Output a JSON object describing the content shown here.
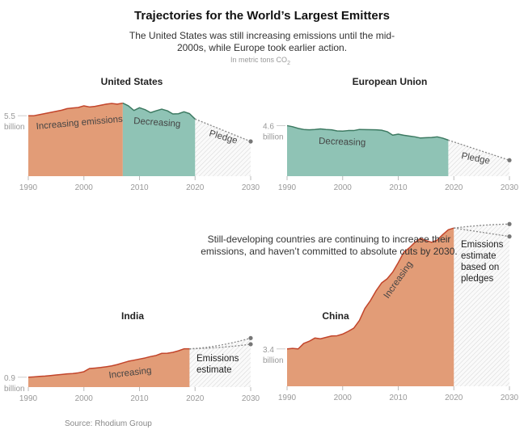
{
  "title": "Trajectories for the World’s Largest Emitters",
  "subtitle_line1": "The United States was still increasing emissions until the mid-",
  "subtitle_line2": "2000s, while Europe took earlier action.",
  "units_note": "In metric tons CO",
  "units_sub": "2",
  "middle_text_line1": "Still-developing countries are continuing to increase their",
  "middle_text_line2": "emissions, and haven’t committed to absolute cuts by 2030.",
  "source": "Source: Rhodium Group",
  "colors": {
    "increase_fill": "#e29c77",
    "increase_line": "#c2452b",
    "decrease_fill": "#8fc3b5",
    "decrease_line": "#3d7a62",
    "projection": "#888888"
  },
  "chart_data": [
    {
      "type": "area",
      "title": "United States",
      "start_year": 1990,
      "values": [
        5.5,
        5.5,
        5.6,
        5.7,
        5.8,
        5.9,
        6.0,
        6.15,
        6.2,
        6.25,
        6.4,
        6.3,
        6.35,
        6.45,
        6.55,
        6.62,
        6.55,
        6.65,
        6.4,
        5.98,
        6.23,
        6.05,
        5.78,
        5.95,
        6.1,
        5.95,
        5.66,
        5.68,
        5.86,
        5.69,
        5.2
      ],
      "peak_year": 2007,
      "projections": [
        {
          "name": "Pledge",
          "points": [
            [
              2020,
              5.2
            ],
            [
              2030,
              3.16
            ]
          ]
        }
      ],
      "y_tick": "5.5",
      "y_tick_value": 5.5,
      "y_unit": "billion",
      "x_ticks": [
        "1990",
        "2000",
        "2010",
        "2020",
        "2030"
      ],
      "labels": {
        "increasing": "Increasing emissions",
        "decreasing": "Decreasing",
        "projection": "Pledge"
      }
    },
    {
      "type": "area",
      "title": "European Union",
      "start_year": 1990,
      "values": [
        4.6,
        4.5,
        4.35,
        4.25,
        4.22,
        4.25,
        4.3,
        4.25,
        4.22,
        4.12,
        4.1,
        4.15,
        4.15,
        4.25,
        4.24,
        4.23,
        4.22,
        4.18,
        4.05,
        3.73,
        3.82,
        3.72,
        3.65,
        3.58,
        3.47,
        3.5,
        3.52,
        3.58,
        3.46,
        3.28
      ],
      "projections": [
        {
          "name": "Pledge",
          "points": [
            [
              2019,
              3.28
            ],
            [
              2030,
              1.45
            ]
          ]
        }
      ],
      "y_tick": "4.6",
      "y_tick_value": 4.6,
      "y_unit": "billion",
      "x_ticks": [
        "1990",
        "2000",
        "2010",
        "2020",
        "2030"
      ],
      "labels": {
        "decreasing": "Decreasing",
        "projection": "Pledge"
      }
    },
    {
      "type": "area",
      "title": "India",
      "start_year": 1990,
      "values": [
        0.9,
        0.93,
        0.97,
        1.0,
        1.05,
        1.1,
        1.15,
        1.2,
        1.23,
        1.3,
        1.4,
        1.69,
        1.73,
        1.78,
        1.85,
        1.93,
        2.05,
        2.2,
        2.35,
        2.45,
        2.55,
        2.65,
        2.78,
        2.88,
        3.07,
        3.08,
        3.16,
        3.3,
        3.48,
        3.48
      ],
      "projections": [
        {
          "name": "high",
          "points": [
            [
              2019,
              3.48
            ],
            [
              2024,
              3.6
            ],
            [
              2030,
              4.46
            ]
          ]
        },
        {
          "name": "low",
          "points": [
            [
              2019,
              3.48
            ],
            [
              2025,
              3.56
            ],
            [
              2030,
              3.9
            ]
          ]
        }
      ],
      "y_tick": "0.9",
      "y_tick_value": 0.9,
      "y_unit": "billion",
      "x_ticks": [
        "1990",
        "2000",
        "2010",
        "2020",
        "2030"
      ],
      "labels": {
        "increasing": "Increasing",
        "projection_line1": "Emissions",
        "projection_line2": "estimate"
      }
    },
    {
      "type": "area",
      "title": "China",
      "start_year": 1990,
      "values": [
        3.4,
        3.45,
        3.4,
        3.9,
        4.1,
        4.39,
        4.32,
        4.45,
        4.58,
        4.6,
        4.75,
        5.0,
        5.29,
        5.98,
        7.08,
        7.8,
        8.68,
        9.4,
        9.78,
        10.39,
        11.25,
        12.2,
        12.6,
        13.1,
        13.45,
        13.26,
        13.1,
        13.3,
        13.8,
        14.24,
        14.4
      ],
      "projections": [
        {
          "name": "high",
          "points": [
            [
              2020,
              14.4
            ],
            [
              2025,
              14.7
            ],
            [
              2030,
              14.76
            ]
          ]
        },
        {
          "name": "low",
          "points": [
            [
              2020,
              14.4
            ],
            [
              2030,
              13.63
            ]
          ]
        }
      ],
      "y_tick": "3.4",
      "y_tick_value": 3.4,
      "y_unit": "billion",
      "x_ticks": [
        "1990",
        "2000",
        "2010",
        "2020",
        "2030"
      ],
      "labels": {
        "increasing": "Increasing",
        "projection_line1": "Emissions",
        "projection_line2": "estimate",
        "projection_line3": "based on",
        "projection_line4": "pledges"
      }
    }
  ]
}
